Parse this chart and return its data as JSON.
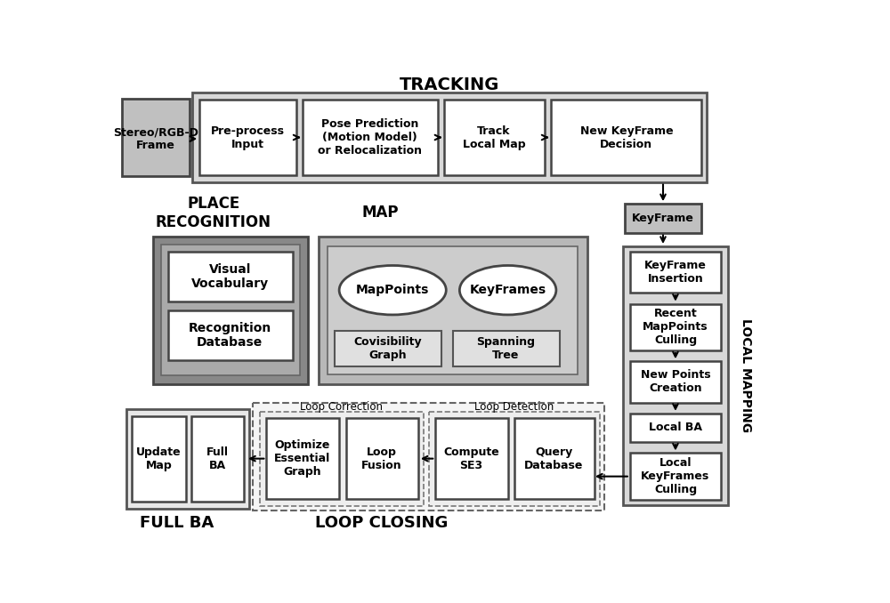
{
  "bg_color": "#ffffff",
  "text_color": "#000000",
  "arrow_color": "#000000",
  "tracking_label": "TRACKING",
  "place_recognition_label": "PLACE\nRECOGNITION",
  "map_label": "MAP",
  "local_mapping_label": "LOCAL MAPPING",
  "full_ba_label": "FULL BA",
  "loop_closing_label": "LOOP CLOSING",
  "loop_correction_label": "Loop Correction",
  "loop_detection_label": "Loop Detection",
  "stereo_text": "Stereo/RGB-D\nFrame",
  "preprocess_text": "Pre-process\nInput",
  "pose_pred_text": "Pose Prediction\n(Motion Model)\nor Relocalization",
  "track_text": "Track\nLocal Map",
  "new_kf_text": "New KeyFrame\nDecision",
  "keyframe_text": "KeyFrame",
  "kf_insertion_text": "KeyFrame\nInsertion",
  "recent_mp_text": "Recent\nMapPoints\nCulling",
  "new_points_text": "New Points\nCreation",
  "local_ba_text": "Local BA",
  "local_kf_culling_text": "Local\nKeyFrames\nCulling",
  "visual_vocab_text": "Visual\nVocabulary",
  "recog_db_text": "Recognition\nDatabase",
  "mappoints_text": "MapPoints",
  "keyframes_text": "KeyFrames",
  "covisibility_text": "Covisibility\nGraph",
  "spanning_text": "Spanning\nTree",
  "update_map_text": "Update\nMap",
  "full_ba_box_text": "Full\nBA",
  "optimize_essential_text": "Optimize\nEssential\nGraph",
  "loop_fusion_text": "Loop\nFusion",
  "compute_se3_text": "Compute\nSE3",
  "query_db_text": "Query\nDatabase"
}
